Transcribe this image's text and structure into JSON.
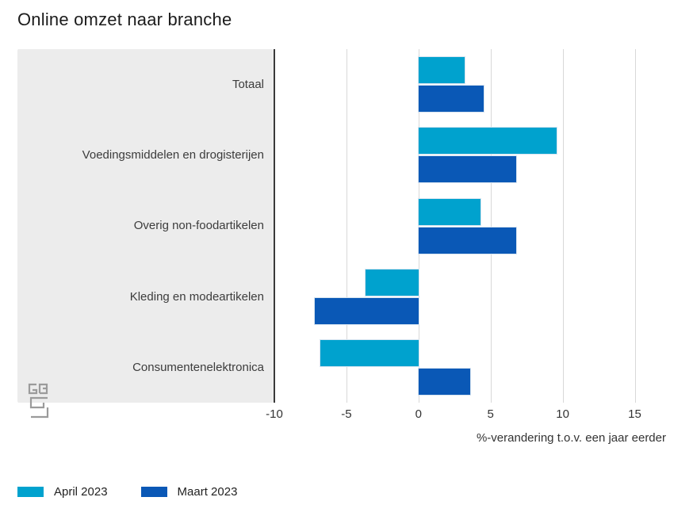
{
  "title": "Online omzet naar branche",
  "chart_data": {
    "type": "bar",
    "orientation": "horizontal",
    "title": "Online omzet naar branche",
    "categories": [
      "Totaal",
      "Voedingsmiddelen en drogisterijen",
      "Overig non-foodartikelen",
      "Kleding en modeartikelen",
      "Consumentenelektronica"
    ],
    "series": [
      {
        "name": "April 2023",
        "color": "#00a2ce",
        "values": [
          3.2,
          9.6,
          4.3,
          -3.7,
          -6.8
        ]
      },
      {
        "name": "Maart 2023",
        "color": "#0a58b6",
        "values": [
          4.5,
          6.8,
          6.8,
          -7.2,
          3.6
        ]
      }
    ],
    "xlabel": "%-verandering t.o.v. een jaar eerder",
    "x_ticks": [
      -10,
      -5,
      0,
      5,
      10,
      15
    ],
    "xlim": [
      -10,
      18
    ],
    "grid": true,
    "legend_position": "bottom-left",
    "panel_color": "#ececec",
    "gridline_color": "#d8d8d8",
    "axis_line_color": "#3a3a3a"
  },
  "legend": {
    "items": [
      {
        "label": "April 2023",
        "color": "#00a2ce"
      },
      {
        "label": "Maart 2023",
        "color": "#0a58b6"
      }
    ]
  },
  "logo": {
    "icon": "cbs-logo"
  }
}
